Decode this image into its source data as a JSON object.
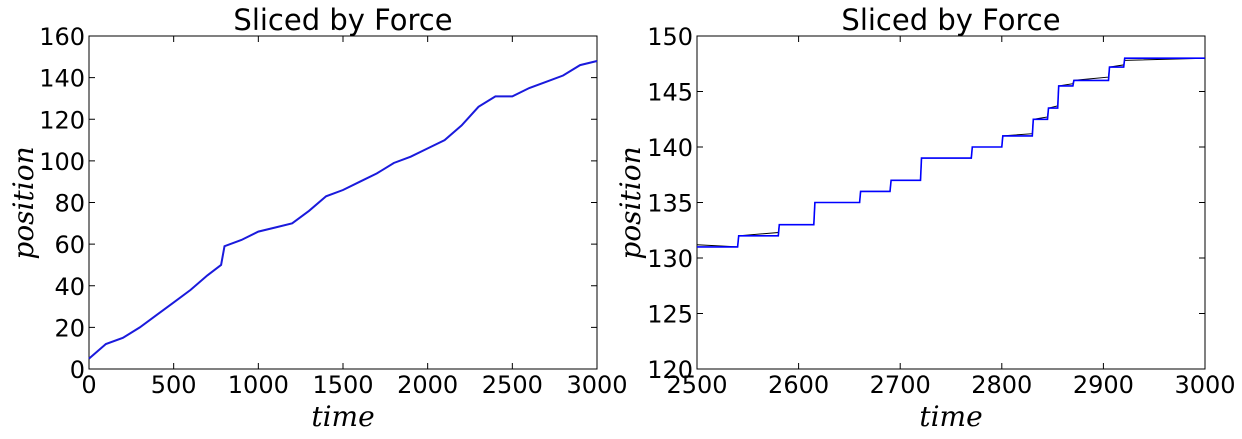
{
  "chart_data": [
    {
      "type": "line",
      "title": "Sliced by Force",
      "xlabel": "time",
      "ylabel": "position",
      "xlim": [
        0,
        3000
      ],
      "ylim": [
        0,
        160
      ],
      "xticks": [
        "0",
        "500",
        "1000",
        "1500",
        "2000",
        "2500",
        "3000"
      ],
      "yticks": [
        "0",
        "20",
        "40",
        "60",
        "80",
        "100",
        "120",
        "140",
        "160"
      ],
      "grid": false,
      "legend": "none",
      "series": [
        {
          "color": "#1a1adc",
          "x": [
            0,
            100,
            200,
            300,
            400,
            500,
            600,
            700,
            780,
            800,
            900,
            1000,
            1100,
            1200,
            1300,
            1400,
            1500,
            1600,
            1700,
            1800,
            1900,
            2000,
            2100,
            2200,
            2300,
            2400,
            2500,
            2600,
            2700,
            2800,
            2900,
            3000
          ],
          "y": [
            5,
            12,
            15,
            20,
            26,
            32,
            38,
            45,
            50,
            59,
            62,
            66,
            68,
            70,
            76,
            83,
            86,
            90,
            94,
            99,
            102,
            106,
            110,
            117,
            126,
            131,
            131,
            135,
            138,
            141,
            146,
            148
          ]
        }
      ]
    },
    {
      "type": "line",
      "title": "Sliced by Force",
      "xlabel": "time",
      "ylabel": "position",
      "xlim": [
        2500,
        3000
      ],
      "ylim": [
        120,
        150
      ],
      "xticks": [
        "2500",
        "2600",
        "2700",
        "2800",
        "2900",
        "3000"
      ],
      "yticks": [
        "120",
        "125",
        "130",
        "135",
        "140",
        "145",
        "150"
      ],
      "grid": false,
      "legend": "none",
      "series": [
        {
          "color": "#000000",
          "x": [
            2500,
            2540,
            2541,
            2580,
            2581,
            2615,
            2616,
            2660,
            2661,
            2690,
            2691,
            2720,
            2721,
            2770,
            2771,
            2800,
            2801,
            2830,
            2831,
            2845,
            2846,
            2855,
            2856,
            2870,
            2871,
            2905,
            2906,
            2920,
            2921,
            3000
          ],
          "y": [
            131.2,
            131.0,
            132.0,
            132.3,
            133.0,
            133.0,
            135.0,
            135.0,
            136.0,
            136.0,
            137.0,
            137.0,
            139.0,
            139.0,
            140.0,
            140.0,
            141.0,
            141.2,
            142.5,
            142.7,
            143.5,
            143.7,
            145.5,
            145.7,
            146.0,
            146.3,
            147.2,
            147.4,
            147.8,
            148.0
          ]
        },
        {
          "color": "#0000ff",
          "x": [
            2500,
            2540,
            2541,
            2580,
            2581,
            2615,
            2616,
            2660,
            2661,
            2690,
            2691,
            2720,
            2721,
            2770,
            2771,
            2800,
            2801,
            2830,
            2831,
            2845,
            2846,
            2855,
            2856,
            2870,
            2871,
            2905,
            2906,
            2920,
            2921,
            3000
          ],
          "y": [
            131.0,
            131.0,
            132.0,
            132.0,
            133.0,
            133.0,
            135.0,
            135.0,
            136.0,
            136.0,
            137.0,
            137.0,
            139.0,
            139.0,
            140.0,
            140.0,
            141.0,
            141.0,
            142.5,
            142.5,
            143.5,
            143.5,
            145.5,
            145.5,
            146.0,
            146.0,
            147.2,
            147.2,
            148.0,
            148.0
          ]
        }
      ]
    }
  ]
}
